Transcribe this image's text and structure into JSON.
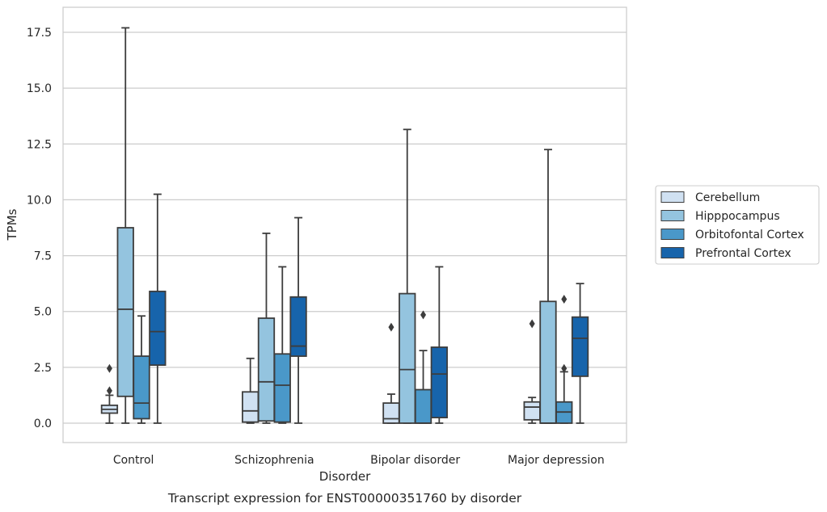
{
  "chart_data": {
    "type": "box",
    "title": "",
    "caption": "Transcript expression for ENST00000351760 by disorder",
    "xlabel": "Disorder",
    "ylabel": "TPMs",
    "ylim": [
      -0.85,
      18.6
    ],
    "yticks": [
      "0.0",
      "2.5",
      "5.0",
      "7.5",
      "10.0",
      "12.5",
      "15.0",
      "17.5"
    ],
    "categories": [
      "Control",
      "Schizophrenia",
      "Bipolar disorder",
      "Major depression"
    ],
    "grid": "horizontal",
    "legend_position": "right",
    "series": [
      {
        "name": "Cerebellum",
        "color": "#d0e1f2",
        "boxes": [
          {
            "whislo": 0.0,
            "q1": 0.45,
            "med": 0.62,
            "q3": 0.8,
            "whishi": 1.25,
            "fliers": [
              1.45,
              2.45
            ]
          },
          {
            "whislo": 0.0,
            "q1": 0.05,
            "med": 0.55,
            "q3": 1.4,
            "whishi": 2.9,
            "fliers": []
          },
          {
            "whislo": 0.0,
            "q1": 0.0,
            "med": 0.2,
            "q3": 0.9,
            "whishi": 1.3,
            "fliers": [
              4.3
            ]
          },
          {
            "whislo": 0.0,
            "q1": 0.15,
            "med": 0.72,
            "q3": 0.95,
            "whishi": 1.15,
            "fliers": [
              4.45
            ]
          }
        ]
      },
      {
        "name": "Hipppocampus",
        "color": "#94c4df",
        "boxes": [
          {
            "whislo": 0.0,
            "q1": 1.2,
            "med": 5.1,
            "q3": 8.75,
            "whishi": 17.7,
            "fliers": []
          },
          {
            "whislo": 0.0,
            "q1": 0.1,
            "med": 1.85,
            "q3": 4.7,
            "whishi": 8.5,
            "fliers": []
          },
          {
            "whislo": 0.0,
            "q1": 0.0,
            "med": 2.4,
            "q3": 5.8,
            "whishi": 13.15,
            "fliers": []
          },
          {
            "whislo": 0.0,
            "q1": 0.0,
            "med": 0.0,
            "q3": 5.45,
            "whishi": 12.25,
            "fliers": []
          }
        ]
      },
      {
        "name": "Orbitofontal Cortex",
        "color": "#4a98c9",
        "boxes": [
          {
            "whislo": 0.0,
            "q1": 0.2,
            "med": 0.9,
            "q3": 3.0,
            "whishi": 4.8,
            "fliers": []
          },
          {
            "whislo": 0.0,
            "q1": 0.05,
            "med": 1.7,
            "q3": 3.1,
            "whishi": 7.0,
            "fliers": []
          },
          {
            "whislo": 0.0,
            "q1": 0.0,
            "med": 0.0,
            "q3": 1.5,
            "whishi": 3.25,
            "fliers": [
              4.85
            ]
          },
          {
            "whislo": 0.0,
            "q1": 0.0,
            "med": 0.5,
            "q3": 0.95,
            "whishi": 2.3,
            "fliers": [
              2.45,
              5.55
            ]
          }
        ]
      },
      {
        "name": "Prefrontal Cortex",
        "color": "#1764ab",
        "boxes": [
          {
            "whislo": 0.0,
            "q1": 2.6,
            "med": 4.1,
            "q3": 5.9,
            "whishi": 10.25,
            "fliers": []
          },
          {
            "whislo": 0.0,
            "q1": 3.0,
            "med": 3.45,
            "q3": 5.65,
            "whishi": 9.2,
            "fliers": []
          },
          {
            "whislo": 0.0,
            "q1": 0.25,
            "med": 2.2,
            "q3": 3.4,
            "whishi": 7.0,
            "fliers": []
          },
          {
            "whislo": 0.0,
            "q1": 2.1,
            "med": 3.8,
            "q3": 4.75,
            "whishi": 6.25,
            "fliers": []
          }
        ]
      }
    ]
  }
}
